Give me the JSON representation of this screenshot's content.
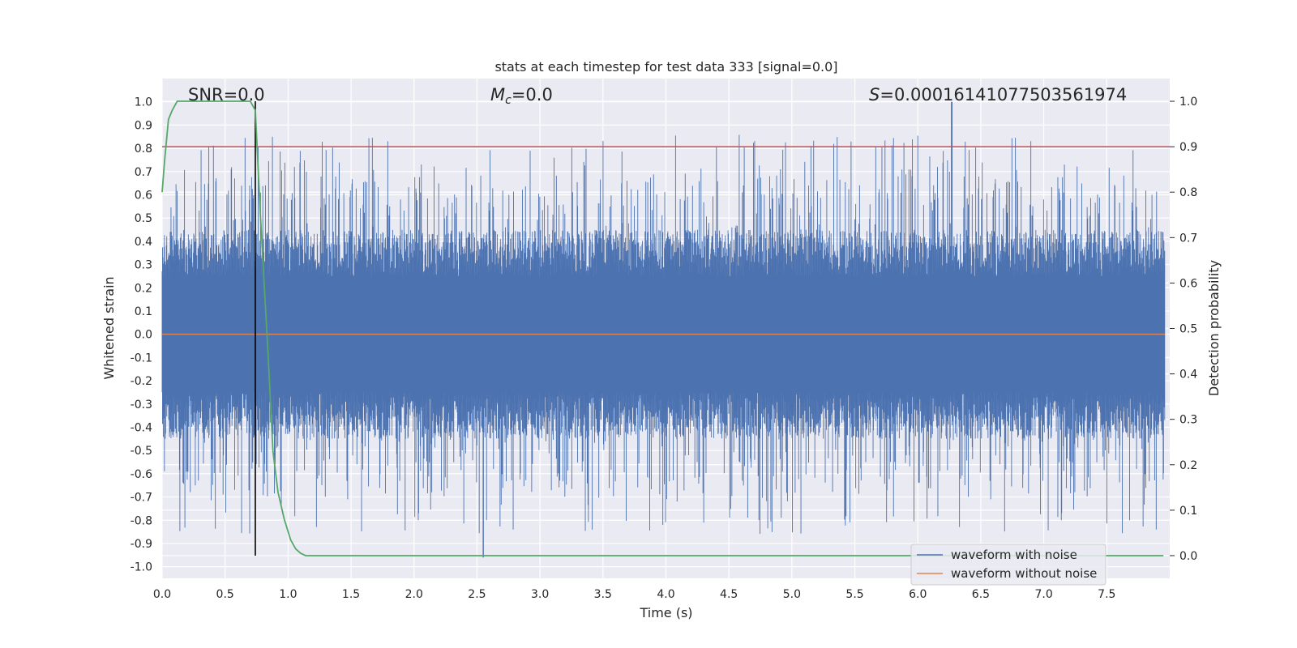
{
  "chart_data": {
    "type": "line",
    "title": "stats at each timestep for test data 333 [signal=0.0]",
    "xlabel": "Time (s)",
    "ylabel_left": "Whitened strain",
    "ylabel_right": "Detection probability",
    "xlim": [
      0.0,
      8.0
    ],
    "ylim_left": [
      -1.05,
      1.1
    ],
    "ylim_right": [
      -0.05,
      1.05
    ],
    "xticks": [
      "0.0",
      "0.5",
      "1.0",
      "1.5",
      "2.0",
      "2.5",
      "3.0",
      "3.5",
      "4.0",
      "4.5",
      "5.0",
      "5.5",
      "6.0",
      "6.5",
      "7.0",
      "7.5"
    ],
    "yticks_left": [
      "1.0",
      "0.9",
      "0.8",
      "0.7",
      "0.6",
      "0.5",
      "0.4",
      "0.3",
      "0.2",
      "0.1",
      "0.0",
      "-0.1",
      "-0.2",
      "-0.3",
      "-0.4",
      "-0.5",
      "-0.6",
      "-0.7",
      "-0.8",
      "-0.9",
      "-1.0"
    ],
    "yticks_right": [
      "1.0",
      "0.9",
      "0.8",
      "0.7",
      "0.6",
      "0.5",
      "0.4",
      "0.3",
      "0.2",
      "0.1",
      "0.0"
    ],
    "annotations": {
      "snr_label": "SNR=0.0",
      "mc_symbol": "M",
      "mc_subscript": "c",
      "mc_value": "=0.0",
      "s_symbol": "S",
      "s_value": "=0.00016141077503561974"
    },
    "threshold_right": 0.9,
    "vertical_marker_x": 0.74,
    "noise_envelope": {
      "approx_upper": 0.45,
      "approx_lower": -0.45,
      "max_peak": 1.0,
      "max_peak_x": 6.27,
      "min_trough": -0.96,
      "min_trough_x": 2.55
    },
    "series": [
      {
        "name": "waveform with noise",
        "axis": "left",
        "color": "#4c72b0"
      },
      {
        "name": "waveform without noise",
        "axis": "left",
        "color": "#dd8452",
        "y_constant": 0.0
      },
      {
        "name": "detection probability",
        "axis": "right",
        "color": "#55a868",
        "x": [
          0.0,
          0.02,
          0.05,
          0.08,
          0.12,
          0.2,
          0.4,
          0.6,
          0.7,
          0.74,
          0.78,
          0.84,
          0.88,
          0.92,
          0.97,
          1.02,
          1.06,
          1.1,
          1.14,
          1.5,
          2.0,
          3.0,
          4.0,
          5.0,
          6.0,
          7.0,
          7.95
        ],
        "y": [
          0.8,
          0.87,
          0.96,
          0.98,
          1.0,
          1.0,
          1.0,
          1.0,
          1.0,
          0.98,
          0.75,
          0.45,
          0.23,
          0.14,
          0.08,
          0.035,
          0.015,
          0.005,
          0.0,
          0.0,
          0.0,
          0.0,
          0.0,
          0.0,
          0.0,
          0.0,
          0.0
        ]
      }
    ],
    "legend": {
      "placement": "lower-right",
      "entries": [
        "waveform with noise",
        "waveform without noise"
      ]
    }
  },
  "colors": {
    "axes_bg": "#eaeaf2",
    "grid": "#ffffff",
    "noise": "#4c72b0",
    "clean": "#dd8452",
    "prob": "#55a868",
    "threshold": "#c44e52",
    "marker": "#000000"
  }
}
